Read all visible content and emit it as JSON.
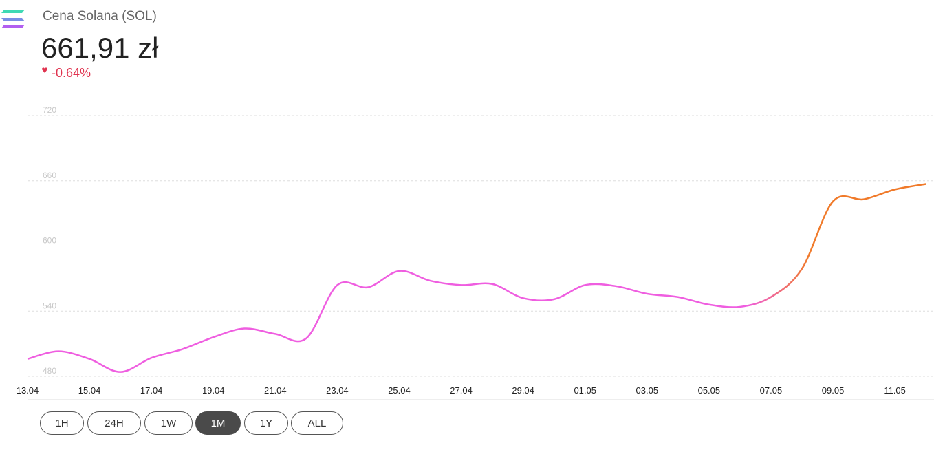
{
  "header": {
    "title": "Cena Solana (SOL)",
    "price": "661,91 zł",
    "change": "-0.64%"
  },
  "chart_data": {
    "type": "line",
    "x": [
      "13.04",
      "14.04",
      "15.04",
      "16.04",
      "17.04",
      "18.04",
      "19.04",
      "20.04",
      "21.04",
      "22.04",
      "23.04",
      "24.04",
      "25.04",
      "26.04",
      "27.04",
      "28.04",
      "29.04",
      "30.04",
      "01.05",
      "02.05",
      "03.05",
      "04.05",
      "05.05",
      "06.05",
      "07.05",
      "08.05",
      "09.05",
      "10.05",
      "11.05",
      "12.05"
    ],
    "series": [
      {
        "colors": [
          "#ef5ee0",
          "#f07a2a"
        ],
        "values": [
          496,
          503,
          496,
          484,
          497,
          505,
          516,
          524,
          519,
          515,
          564,
          562,
          577,
          568,
          564,
          565,
          552,
          551,
          564,
          563,
          556,
          553,
          546,
          544,
          553,
          579,
          641,
          643,
          652,
          657
        ]
      }
    ],
    "ylim": [
      480,
      720
    ],
    "yticks": [
      480,
      540,
      600,
      660,
      720
    ],
    "xticks": [
      "13.04",
      "15.04",
      "17.04",
      "19.04",
      "21.04",
      "23.04",
      "25.04",
      "27.04",
      "29.04",
      "01.05",
      "03.05",
      "05.05",
      "07.05",
      "09.05",
      "11.05"
    ],
    "grid": true
  },
  "range_buttons": {
    "options": [
      "1H",
      "24H",
      "1W",
      "1M",
      "1Y",
      "ALL"
    ],
    "active": 3
  }
}
